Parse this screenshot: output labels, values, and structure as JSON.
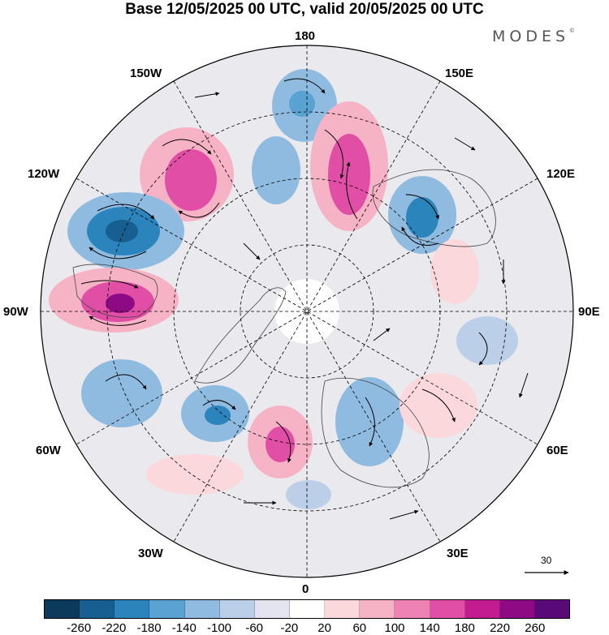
{
  "header": {
    "title": "Base 12/05/2025 00 UTC, valid 20/05/2025 00 UTC",
    "brand": "MODES",
    "brand_mark": "©"
  },
  "map": {
    "projection": "north-polar-stereographic",
    "meridian_labels": {
      "top": "180",
      "bottom": "0",
      "left": "90W",
      "right": "90E",
      "w150": "150W",
      "e150": "150E",
      "w120": "120W",
      "e120": "120E",
      "w60": "60W",
      "e60": "60E",
      "w30": "30W",
      "e30": "30E"
    },
    "vector_scale_label": "30",
    "colors": {
      "negative_strong": "#8a2b96",
      "positive_strong": "#1a5a8a",
      "land_outline": "#444444",
      "grid": "#000000"
    }
  },
  "colorbar": {
    "colors": [
      "#0b3a5c",
      "#165f90",
      "#2b84bc",
      "#5aa2d2",
      "#8fbbe0",
      "#bccfe8",
      "#e4e4f0",
      "#ffffff",
      "#fbd8dc",
      "#f6b3c6",
      "#ee82b4",
      "#e04ea6",
      "#c21c90",
      "#8e0a84",
      "#5a0a78"
    ],
    "ticks": [
      "-260",
      "-220",
      "-180",
      "-140",
      "-100",
      "-60",
      "-20",
      "20",
      "60",
      "100",
      "140",
      "180",
      "220",
      "260"
    ]
  }
}
